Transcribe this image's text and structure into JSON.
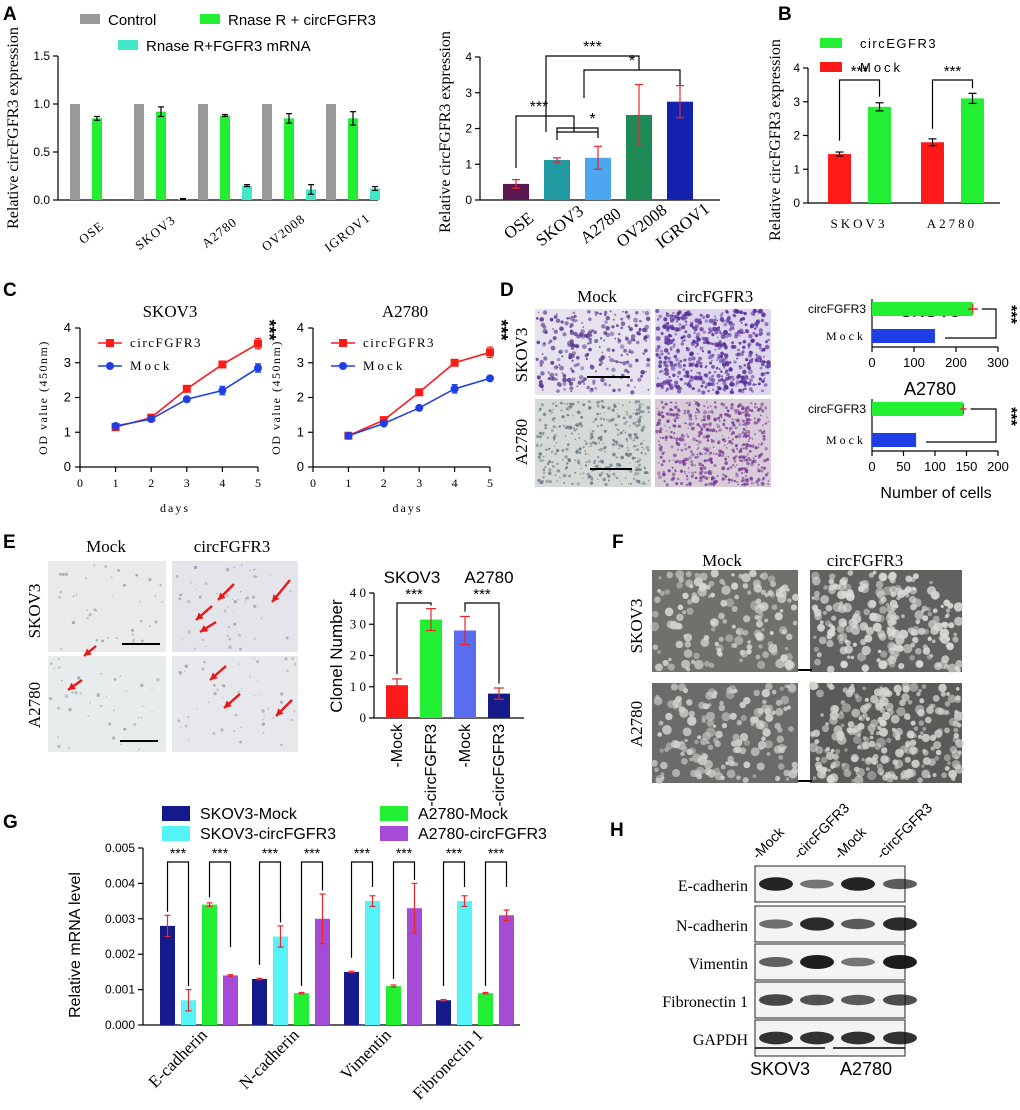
{
  "panel_labels": {
    "A": "A",
    "B": "B",
    "C": "C",
    "D": "D",
    "E": "E",
    "F": "F",
    "G": "G",
    "H": "H"
  },
  "image_labels": {
    "D": {
      "cols": [
        "Mock",
        "circFGFR3"
      ],
      "rows": [
        "SKOV3",
        "A2780"
      ]
    },
    "E": {
      "cols": [
        "Mock",
        "circFGFR3"
      ],
      "rows": [
        "SKOV3",
        "A2780"
      ]
    },
    "F": {
      "cols": [
        "Mock",
        "circFGFR3"
      ],
      "rows": [
        "SKOV3",
        "A2780"
      ]
    }
  },
  "colors": {
    "control": "#999999",
    "green": "#22ee33",
    "aqua": "#44e6c8",
    "red": "#ff1a1a",
    "blue": "#1f3fe6",
    "navy": "#141a8c",
    "cyan": "#55f2f8",
    "violet": "#a64bd6",
    "purple": "#5a1650",
    "teal": "#1f9aa0",
    "lightblue": "#4da6f0",
    "seagreen": "#1e8a55",
    "royal": "#1522b0",
    "midblue": "#5a6cf0",
    "errbar": "#e8262b"
  },
  "chart_data": [
    {
      "id": "A1",
      "type": "bar",
      "ylabel": "Relative circFGFR3 expression",
      "ylim": [
        0,
        1.5
      ],
      "yticks": [
        "0.0",
        "0.5",
        "1.0",
        "1.5"
      ],
      "categories": [
        "OSE",
        "SKOV3",
        "A2780",
        "OV2008",
        "IGROV1"
      ],
      "legend": [
        "Control",
        "Rnase R + circFGFR3",
        "Rnase R+FGFR3 mRNA"
      ],
      "series": [
        {
          "name": "Control",
          "values": [
            1.0,
            1.0,
            1.0,
            1.0,
            1.0
          ],
          "err": [
            0,
            0,
            0,
            0,
            0
          ]
        },
        {
          "name": "Rnase R + circFGFR3",
          "values": [
            0.85,
            0.92,
            0.88,
            0.85,
            0.85
          ],
          "err": [
            0.02,
            0.05,
            0.01,
            0.05,
            0.07
          ]
        },
        {
          "name": "Rnase R+FGFR3 mRNA",
          "values": [
            0.0,
            0.01,
            0.15,
            0.11,
            0.12
          ],
          "err": [
            0,
            0.005,
            0.01,
            0.05,
            0.02
          ]
        }
      ]
    },
    {
      "id": "A2",
      "type": "bar",
      "ylabel": "Relative circFGFR3 expression",
      "ylim": [
        0,
        4
      ],
      "yticks": [
        "0",
        "1",
        "2",
        "3",
        "4"
      ],
      "categories": [
        "OSE",
        "SKOV3",
        "A2780",
        "OV2008",
        "IGROV1"
      ],
      "values": [
        0.45,
        1.12,
        1.18,
        2.38,
        2.75
      ],
      "err": [
        0.12,
        0.06,
        0.32,
        0.85,
        0.45
      ],
      "annotations": [
        "***",
        "*",
        "***",
        "*"
      ]
    },
    {
      "id": "B",
      "type": "bar",
      "ylabel": "Relative circFGFR3 expression",
      "ylim": [
        0,
        4
      ],
      "yticks": [
        "0",
        "1",
        "2",
        "3",
        "4"
      ],
      "categories": [
        "SKOV3",
        "A2780"
      ],
      "legend": [
        "circEGFR3",
        "Mock"
      ],
      "series": [
        {
          "name": "Mock",
          "values": [
            1.45,
            1.8
          ],
          "err": [
            0.06,
            0.1
          ]
        },
        {
          "name": "circEGFR3",
          "values": [
            2.85,
            3.1
          ],
          "err": [
            0.12,
            0.15
          ]
        }
      ],
      "annotations": [
        "***",
        "***"
      ]
    },
    {
      "id": "C1",
      "type": "line",
      "title": "SKOV3",
      "xlabel": "days",
      "ylabel": "OD value (450nm)",
      "xlim": [
        0,
        5
      ],
      "ylim": [
        0,
        4
      ],
      "x": [
        1,
        2,
        3,
        4,
        5
      ],
      "series": [
        {
          "name": "circFGFR3",
          "values": [
            1.15,
            1.42,
            2.25,
            2.95,
            3.55
          ],
          "err": [
            0.03,
            0.04,
            0.08,
            0.07,
            0.15
          ]
        },
        {
          "name": "Mock",
          "values": [
            1.18,
            1.38,
            1.95,
            2.2,
            2.85
          ],
          "err": [
            0.03,
            0.04,
            0.05,
            0.12,
            0.12
          ]
        }
      ],
      "annotation": "***"
    },
    {
      "id": "C2",
      "type": "line",
      "title": "A2780",
      "xlabel": "days",
      "ylabel": "OD value (450nm)",
      "xlim": [
        0,
        5
      ],
      "ylim": [
        0,
        4
      ],
      "x": [
        1,
        2,
        3,
        4,
        5
      ],
      "series": [
        {
          "name": "circFGFR3",
          "values": [
            0.9,
            1.35,
            2.15,
            3.0,
            3.3
          ],
          "err": [
            0.03,
            0.04,
            0.06,
            0.08,
            0.15
          ]
        },
        {
          "name": "Mock",
          "values": [
            0.9,
            1.25,
            1.7,
            2.25,
            2.55
          ],
          "err": [
            0.03,
            0.04,
            0.05,
            0.12,
            0.06
          ]
        }
      ],
      "annotation": "***"
    },
    {
      "id": "D1",
      "type": "bar",
      "orientation": "horizontal",
      "title": "SKOV3",
      "xlim": [
        0,
        300
      ],
      "xticks": [
        "0",
        "100",
        "200",
        "300"
      ],
      "categories": [
        "circFGFR3",
        "Mock"
      ],
      "values": [
        240,
        150
      ],
      "err": [
        12,
        0
      ],
      "annotation": "***"
    },
    {
      "id": "D2",
      "type": "bar",
      "orientation": "horizontal",
      "title": "A2780",
      "xlim": [
        0,
        200
      ],
      "xticks": [
        "0",
        "50",
        "100",
        "150",
        "200"
      ],
      "categories": [
        "circFGFR3",
        "Mock"
      ],
      "values": [
        145,
        70
      ],
      "err": [
        5,
        0
      ],
      "xlabel": "Number of cells",
      "annotation": "***"
    },
    {
      "id": "E",
      "type": "bar",
      "ylabel": "Clonel Number",
      "ylim": [
        0,
        40
      ],
      "yticks": [
        "0",
        "1 0",
        "2 0",
        "3 0",
        "4 0"
      ],
      "categories": [
        "-Mock",
        "-circFGFR3",
        "-Mock",
        "-circFGFR3"
      ],
      "groups": [
        "SKOV3",
        "A2780"
      ],
      "values": [
        10.5,
        31.5,
        28,
        7.8
      ],
      "err": [
        2,
        3.5,
        4.5,
        1.8
      ],
      "annotations": [
        "***",
        "***"
      ]
    },
    {
      "id": "G",
      "type": "bar",
      "ylabel": "Relative mRNA level",
      "ylim": [
        0,
        0.005
      ],
      "yticks": [
        "0.000",
        "0.001",
        "0.002",
        "0.003",
        "0.004",
        "0.005"
      ],
      "categories": [
        "E-cadherin",
        "N-cadherin",
        "Vimentin",
        "Fibronectin 1"
      ],
      "legend": [
        "SKOV3-Mock",
        "A2780-Mock",
        "SKOV3-circFGFR3",
        "A2780-circFGFR3"
      ],
      "series": [
        {
          "name": "SKOV3-Mock",
          "values": [
            0.0028,
            0.0013,
            0.0015,
            0.0007
          ],
          "err": [
            0.0003,
            2e-05,
            2e-05,
            2e-05
          ]
        },
        {
          "name": "SKOV3-circFGFR3",
          "values": [
            0.0007,
            0.0025,
            0.0035,
            0.0035
          ],
          "err": [
            0.0003,
            0.0003,
            0.00015,
            0.00015
          ]
        },
        {
          "name": "A2780-Mock",
          "values": [
            0.0034,
            0.0009,
            0.0011,
            0.0009
          ],
          "err": [
            5e-05,
            2e-05,
            3e-05,
            2e-05
          ]
        },
        {
          "name": "A2780-circFGFR3",
          "values": [
            0.0014,
            0.003,
            0.0033,
            0.0031
          ],
          "err": [
            2e-05,
            0.0007,
            0.0007,
            0.00015
          ]
        }
      ],
      "annotations": [
        "***",
        "***",
        "***",
        "***",
        "***",
        "***",
        "***",
        "***"
      ]
    }
  ],
  "western_blot": {
    "lanes": [
      "-Mock",
      "-circFGFR3",
      "-Mock",
      "-circFGFR3"
    ],
    "proteins": [
      "E-cadherin",
      "N-cadherin",
      "Vimentin",
      "Fibronectin 1",
      "GAPDH"
    ],
    "cell_lines": [
      "SKOV3",
      "A2780"
    ]
  }
}
